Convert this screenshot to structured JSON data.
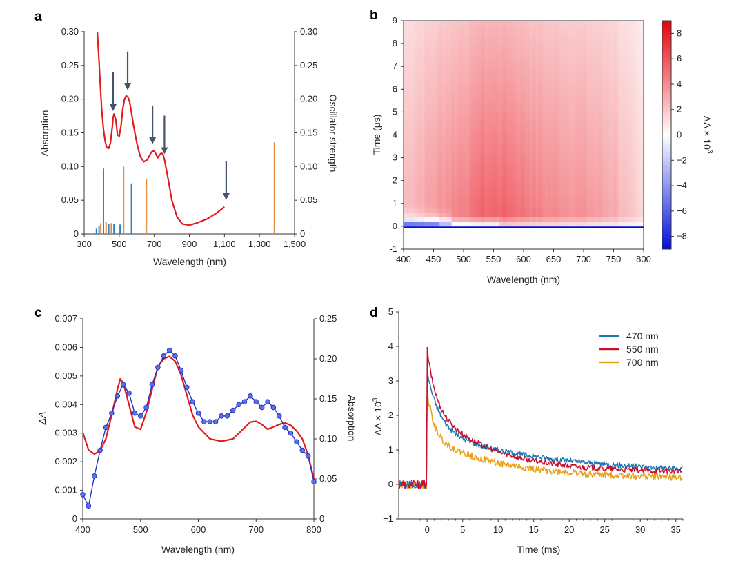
{
  "colors": {
    "absorption": "#e31a1c",
    "oscillator_blue": "#2f7ec4",
    "oscillator_orange": "#e58a3a",
    "arrow": "#46536b",
    "dA_blue": "#2432c8",
    "trace_470": "#1f78b4",
    "trace_550": "#c8102e",
    "trace_700": "#e8a21a",
    "map_neg": "#0010e0",
    "map_pos": "#e8000b"
  },
  "chart_data": [
    {
      "panel": "a",
      "type": "line",
      "xlabel": "Wavelength (nm)",
      "ylabel": "Absorption",
      "y2label": "Oscillator strength",
      "xlim": [
        300,
        1500
      ],
      "ylim": [
        0,
        0.3
      ],
      "y2lim": [
        0,
        0.3
      ],
      "xticks": [
        "300",
        "500",
        "700",
        "900",
        "1,100",
        "1,300",
        "1,500"
      ],
      "xtick_values": [
        300,
        500,
        700,
        900,
        1100,
        1300,
        1500
      ],
      "yticks": [
        "0",
        "0.05",
        "0.10",
        "0.15",
        "0.20",
        "0.25",
        "0.30"
      ],
      "ytick_values": [
        0,
        0.05,
        0.1,
        0.15,
        0.2,
        0.25,
        0.3
      ],
      "absorption": {
        "x": [
          375,
          382,
          390,
          400,
          410,
          420,
          430,
          440,
          450,
          460,
          465,
          470,
          480,
          490,
          500,
          510,
          520,
          530,
          540,
          550,
          560,
          570,
          580,
          600,
          620,
          640,
          660,
          680,
          690,
          700,
          710,
          720,
          730,
          740,
          750,
          760,
          780,
          800,
          830,
          860,
          900,
          950,
          1000,
          1050,
          1100
        ],
        "y": [
          0.3,
          0.27,
          0.23,
          0.185,
          0.155,
          0.137,
          0.128,
          0.127,
          0.135,
          0.158,
          0.172,
          0.178,
          0.17,
          0.147,
          0.145,
          0.16,
          0.185,
          0.2,
          0.205,
          0.203,
          0.195,
          0.18,
          0.163,
          0.135,
          0.115,
          0.107,
          0.11,
          0.12,
          0.123,
          0.123,
          0.118,
          0.113,
          0.117,
          0.12,
          0.118,
          0.108,
          0.08,
          0.05,
          0.025,
          0.015,
          0.013,
          0.017,
          0.022,
          0.03,
          0.04
        ]
      },
      "oscillator_blue": {
        "x": [
          370,
          385,
          410,
          440,
          470,
          505,
          570
        ],
        "y": [
          0.008,
          0.012,
          0.097,
          0.015,
          0.015,
          0.014,
          0.075
        ]
      },
      "oscillator_orange": {
        "x": [
          395,
          425,
          455,
          525,
          655,
          1385
        ],
        "y": [
          0.016,
          0.018,
          0.016,
          0.1,
          0.082,
          0.136
        ]
      },
      "arrows_at": [
        465,
        548,
        690,
        758,
        1110
      ]
    },
    {
      "panel": "b",
      "type": "heatmap",
      "xlabel": "Wavelength (nm)",
      "ylabel": "Time (μs)",
      "colorbar_label": "ΔA × 10",
      "colorbar_exp": "3",
      "xlim": [
        400,
        800
      ],
      "ylim": [
        -1,
        9
      ],
      "clim": [
        -9,
        9
      ],
      "xticks": [
        "400",
        "450",
        "500",
        "550",
        "600",
        "650",
        "700",
        "750",
        "800"
      ],
      "xtick_values": [
        400,
        450,
        500,
        550,
        600,
        650,
        700,
        750,
        800
      ],
      "yticks": [
        "-1",
        "0",
        "1",
        "2",
        "3",
        "4",
        "5",
        "6",
        "7",
        "8",
        "9"
      ],
      "ytick_values": [
        -1,
        0,
        1,
        2,
        3,
        4,
        5,
        6,
        7,
        8,
        9
      ],
      "cbticks": [
        "8",
        "6",
        "4",
        "2",
        "0",
        "−2",
        "−4",
        "−6",
        "−8"
      ],
      "cbtick_values": [
        8,
        6,
        4,
        2,
        0,
        -2,
        -4,
        -6,
        -8
      ]
    },
    {
      "panel": "c",
      "type": "line",
      "xlabel": "Wavelength (nm)",
      "ylabel": "ΔA",
      "y2label": "Absorption",
      "xlim": [
        400,
        800
      ],
      "ylim": [
        0,
        0.007
      ],
      "y2lim": [
        0,
        0.25
      ],
      "xticks": [
        "400",
        "500",
        "600",
        "700",
        "800"
      ],
      "xtick_values": [
        400,
        500,
        600,
        700,
        800
      ],
      "yticks": [
        "0",
        "0.001",
        "0.002",
        "0.003",
        "0.004",
        "0.005",
        "0.006",
        "0.007"
      ],
      "ytick_values": [
        0,
        0.001,
        0.002,
        0.003,
        0.004,
        0.005,
        0.006,
        0.007
      ],
      "y2ticks": [
        "0",
        "0.05",
        "0.10",
        "0.15",
        "0.20",
        "0.25"
      ],
      "y2tick_values": [
        0,
        0.05,
        0.1,
        0.15,
        0.2,
        0.25
      ],
      "delta_A": {
        "x": [
          400,
          410,
          420,
          430,
          440,
          450,
          460,
          470,
          480,
          490,
          500,
          510,
          520,
          530,
          540,
          550,
          560,
          570,
          580,
          590,
          600,
          610,
          620,
          630,
          640,
          650,
          660,
          670,
          680,
          690,
          700,
          710,
          720,
          730,
          740,
          750,
          760,
          770,
          780,
          790,
          800
        ],
        "y": [
          0.00085,
          0.00045,
          0.0015,
          0.0024,
          0.0032,
          0.0037,
          0.0043,
          0.0047,
          0.0044,
          0.0037,
          0.0036,
          0.0039,
          0.0047,
          0.0053,
          0.0057,
          0.0059,
          0.0057,
          0.0052,
          0.0046,
          0.0041,
          0.0037,
          0.0034,
          0.0034,
          0.0034,
          0.0036,
          0.0036,
          0.0038,
          0.004,
          0.0041,
          0.0043,
          0.0041,
          0.0039,
          0.0041,
          0.0039,
          0.0036,
          0.0032,
          0.003,
          0.0027,
          0.0024,
          0.0022,
          0.0013
        ]
      },
      "absorption": {
        "x": [
          400,
          410,
          420,
          430,
          440,
          450,
          460,
          465,
          470,
          480,
          490,
          500,
          510,
          520,
          530,
          540,
          550,
          560,
          570,
          580,
          590,
          600,
          620,
          640,
          660,
          680,
          690,
          700,
          710,
          720,
          730,
          740,
          750,
          760,
          770,
          780,
          790,
          800
        ],
        "y": [
          0.108,
          0.086,
          0.081,
          0.085,
          0.1,
          0.13,
          0.162,
          0.175,
          0.17,
          0.143,
          0.115,
          0.112,
          0.133,
          0.162,
          0.19,
          0.2,
          0.203,
          0.197,
          0.18,
          0.155,
          0.13,
          0.115,
          0.1,
          0.097,
          0.1,
          0.114,
          0.121,
          0.122,
          0.118,
          0.112,
          0.115,
          0.118,
          0.12,
          0.117,
          0.11,
          0.1,
          0.08,
          0.05
        ]
      }
    },
    {
      "panel": "d",
      "type": "line",
      "xlabel": "Time (ms)",
      "ylabel": "ΔA × 10",
      "ylabel_exp": "3",
      "xlim": [
        -4,
        36
      ],
      "ylim": [
        -1,
        5
      ],
      "xticks": [
        "0",
        "5",
        "10",
        "15",
        "20",
        "25",
        "30",
        "35"
      ],
      "xtick_values": [
        0,
        5,
        10,
        15,
        20,
        25,
        30,
        35
      ],
      "yticks": [
        "−1",
        "0",
        "1",
        "2",
        "3",
        "4",
        "5"
      ],
      "ytick_values": [
        -1,
        0,
        1,
        2,
        3,
        4,
        5
      ],
      "series": [
        {
          "name": "470 nm",
          "peak": 3.3,
          "fast_amp": 1.7,
          "fast_tau": 1.8,
          "slow_amp": 1.25,
          "slow_tau": 17,
          "floor": 0.3,
          "noise": 0.07
        },
        {
          "name": "550 nm",
          "peak": 3.95,
          "fast_amp": 1.6,
          "fast_tau": 1.2,
          "slow_amp": 1.95,
          "slow_tau": 8.5,
          "floor": 0.35,
          "noise": 0.07
        },
        {
          "name": "700 nm",
          "peak": 2.95,
          "fast_amp": 1.3,
          "fast_tau": 1.0,
          "slow_amp": 1.2,
          "slow_tau": 10,
          "floor": 0.18,
          "noise": 0.09
        }
      ]
    }
  ],
  "panel_labels": {
    "a": "a",
    "b": "b",
    "c": "c",
    "d": "d"
  }
}
